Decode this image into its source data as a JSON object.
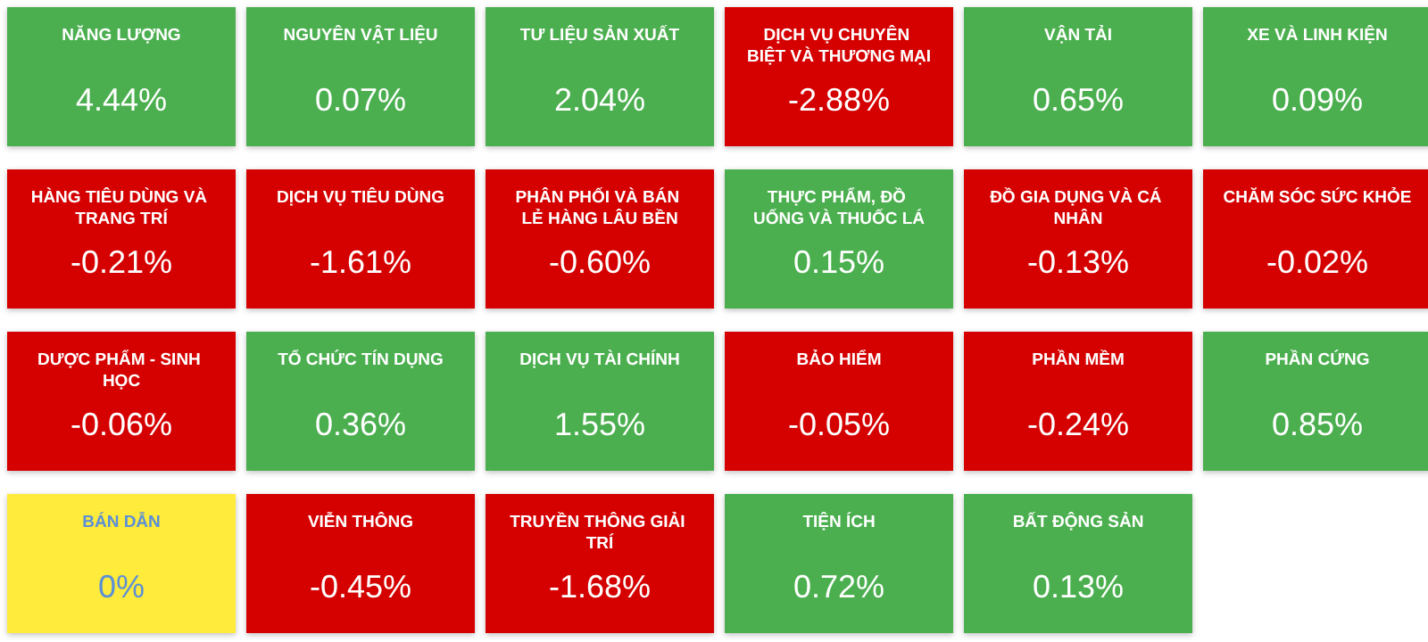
{
  "chart_data": {
    "type": "other",
    "categories": [
      "NĂNG LƯỢNG",
      "NGUYÊN VẬT LIỆU",
      "TƯ LIỆU SẢN XUẤT",
      "DỊCH VỤ CHUYÊN BIỆT VÀ THƯƠNG MẠI",
      "VẬN TẢI",
      "XE VÀ LINH KIỆN",
      "HÀNG TIÊU DÙNG VÀ TRANG TRÍ",
      "DỊCH VỤ TIÊU DÙNG",
      "PHÂN PHỐI VÀ BÁN LẺ HÀNG LÂU BỀN",
      "THỰC PHẨM, ĐỒ UỐNG VÀ THUỐC LÁ",
      "ĐỒ GIA DỤNG VÀ CÁ NHÂN",
      "CHĂM SÓC SỨC KHỎE",
      "DƯỢC PHẨM - SINH HỌC",
      "TỔ CHỨC TÍN DỤNG",
      "DỊCH VỤ TÀI CHÍNH",
      "BẢO HIỂM",
      "PHẦN MỀM",
      "PHẦN CỨNG",
      "BÁN DẪN",
      "VIỄN THÔNG",
      "TRUYỀN THÔNG GIẢI TRÍ",
      "TIỆN ÍCH",
      "BẤT ĐỘNG SẢN"
    ],
    "values": [
      4.44,
      0.07,
      2.04,
      -2.88,
      0.65,
      0.09,
      -0.21,
      -1.61,
      -0.6,
      0.15,
      -0.13,
      -0.02,
      -0.06,
      0.36,
      1.55,
      -0.05,
      -0.24,
      0.85,
      0,
      -0.45,
      -1.68,
      0.72,
      0.13
    ],
    "value_labels": [
      "4.44%",
      "0.07%",
      "2.04%",
      "-2.88%",
      "0.65%",
      "0.09%",
      "-0.21%",
      "-1.61%",
      "-0.60%",
      "0.15%",
      "-0.13%",
      "-0.02%",
      "-0.06%",
      "0.36%",
      "1.55%",
      "-0.05%",
      "-0.24%",
      "0.85%",
      "0%",
      "-0.45%",
      "-1.68%",
      "0.72%",
      "0.13%"
    ],
    "colors": [
      "#4caf50",
      "#4caf50",
      "#4caf50",
      "#d50000",
      "#4caf50",
      "#4caf50",
      "#d50000",
      "#d50000",
      "#d50000",
      "#4caf50",
      "#d50000",
      "#d50000",
      "#d50000",
      "#4caf50",
      "#4caf50",
      "#d50000",
      "#d50000",
      "#4caf50",
      "#ffeb3b",
      "#d50000",
      "#d50000",
      "#4caf50",
      "#4caf50"
    ]
  }
}
